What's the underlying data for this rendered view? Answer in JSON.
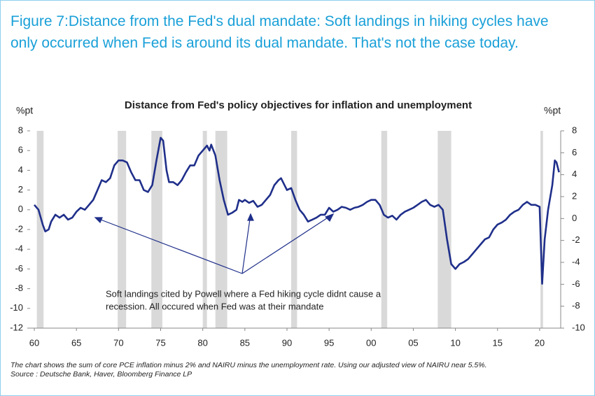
{
  "header": {
    "title": "Figure 7:Distance from the Fed's dual mandate: Soft landings in hiking cycles have only occurred when Fed is around its dual mandate. That's not the case today."
  },
  "chart_data": {
    "type": "line",
    "title": "Distance from Fed's policy objectives for inflation and unemployment",
    "ylabel": "%pt",
    "y2label": "%pt",
    "annotation": [
      "Soft landings cited by Powell where a Fed hiking cycle didnt cause a",
      "recession. All occured when Fed was at their mandate"
    ],
    "color": "#1f2f8a",
    "recession_color": "#d9d9d9",
    "xlim": [
      1959.5,
      2022.5
    ],
    "xticks": [
      {
        "value": 1960,
        "label": "60"
      },
      {
        "value": 1965,
        "label": "65"
      },
      {
        "value": 1970,
        "label": "70"
      },
      {
        "value": 1975,
        "label": "75"
      },
      {
        "value": 1980,
        "label": "80"
      },
      {
        "value": 1985,
        "label": "85"
      },
      {
        "value": 1990,
        "label": "90"
      },
      {
        "value": 1995,
        "label": "95"
      },
      {
        "value": 2000,
        "label": "00"
      },
      {
        "value": 2005,
        "label": "05"
      },
      {
        "value": 2010,
        "label": "10"
      },
      {
        "value": 2015,
        "label": "15"
      },
      {
        "value": 2020,
        "label": "20"
      }
    ],
    "ylim": [
      -12,
      8
    ],
    "yticks": [
      -12,
      -10,
      -8,
      -6,
      -4,
      -2,
      0,
      2,
      4,
      6,
      8
    ],
    "y2lim": [
      -10,
      8
    ],
    "y2ticks": [
      -10,
      -8,
      -6,
      -4,
      -2,
      0,
      2,
      4,
      6,
      8
    ],
    "recessions": [
      [
        1960.3,
        1961.1
      ],
      [
        1969.9,
        1970.9
      ],
      [
        1973.9,
        1975.2
      ],
      [
        1980.0,
        1980.5
      ],
      [
        1981.5,
        1982.9
      ],
      [
        1990.5,
        1991.2
      ],
      [
        2001.2,
        2001.9
      ],
      [
        2007.9,
        2009.5
      ],
      [
        2020.1,
        2020.4
      ]
    ],
    "x": [
      1960,
      1960.5,
      1961,
      1961.3,
      1961.7,
      1962,
      1962.5,
      1963,
      1963.5,
      1964,
      1964.5,
      1965,
      1965.5,
      1966,
      1966.5,
      1967,
      1967.5,
      1968,
      1968.5,
      1969,
      1969.5,
      1970,
      1970.5,
      1971,
      1971.5,
      1972,
      1972.5,
      1973,
      1973.5,
      1974,
      1974.5,
      1975,
      1975.3,
      1975.7,
      1976,
      1976.5,
      1977,
      1977.5,
      1978,
      1978.5,
      1979,
      1979.5,
      1980,
      1980.5,
      1980.8,
      1981,
      1981.5,
      1982,
      1982.5,
      1983,
      1983.5,
      1984,
      1984.3,
      1984.7,
      1985,
      1985.5,
      1986,
      1986.5,
      1987,
      1987.5,
      1988,
      1988.5,
      1989,
      1989.3,
      1989.7,
      1990,
      1990.5,
      1991,
      1991.5,
      1992,
      1992.5,
      1993,
      1993.5,
      1994,
      1994.5,
      1995,
      1995.5,
      1996,
      1996.5,
      1997,
      1997.5,
      1998,
      1998.5,
      1999,
      1999.5,
      2000,
      2000.5,
      2001,
      2001.5,
      2002,
      2002.5,
      2003,
      2003.5,
      2004,
      2004.5,
      2005,
      2005.5,
      2006,
      2006.5,
      2007,
      2007.5,
      2008,
      2008.5,
      2009,
      2009.5,
      2010,
      2010.5,
      2011,
      2011.5,
      2012,
      2012.5,
      2013,
      2013.5,
      2014,
      2014.5,
      2015,
      2015.5,
      2016,
      2016.5,
      2017,
      2017.5,
      2018,
      2018.5,
      2019,
      2019.5,
      2020,
      2020.3,
      2020.6,
      2021,
      2021.5,
      2021.8,
      2022,
      2022.3
    ],
    "values": [
      0.5,
      0,
      -1.5,
      -2.2,
      -2.0,
      -1.2,
      -0.5,
      -0.8,
      -0.5,
      -1.0,
      -0.8,
      -0.2,
      0.2,
      0.0,
      0.5,
      1.0,
      2.0,
      3.0,
      2.8,
      3.2,
      4.5,
      5.0,
      5.0,
      4.8,
      3.8,
      3.0,
      3.0,
      2.0,
      1.8,
      2.5,
      5.0,
      7.3,
      7.0,
      4.0,
      2.8,
      2.8,
      2.5,
      3.0,
      3.8,
      4.5,
      4.5,
      5.5,
      6.0,
      6.5,
      6.0,
      6.6,
      5.5,
      3.0,
      1.0,
      -0.5,
      -0.3,
      0.0,
      1.0,
      0.8,
      1.0,
      0.7,
      0.9,
      0.3,
      0.5,
      1.0,
      1.5,
      2.5,
      3.0,
      3.2,
      2.5,
      2.0,
      2.2,
      1.0,
      0.0,
      -0.5,
      -1.2,
      -1.0,
      -0.8,
      -0.5,
      -0.5,
      0.2,
      -0.2,
      0.0,
      0.3,
      0.2,
      0.0,
      0.2,
      0.3,
      0.5,
      0.8,
      1.0,
      1.0,
      0.5,
      -0.5,
      -0.8,
      -0.6,
      -1.0,
      -0.5,
      -0.2,
      0.0,
      0.2,
      0.5,
      0.8,
      1.0,
      0.5,
      0.3,
      0.5,
      0.0,
      -3.0,
      -5.5,
      -6.0,
      -5.5,
      -5.3,
      -5.0,
      -4.5,
      -4.0,
      -3.5,
      -3.0,
      -2.8,
      -2.0,
      -1.5,
      -1.3,
      -1.0,
      -0.5,
      -0.2,
      0.0,
      0.5,
      0.8,
      0.5,
      0.5,
      0.3,
      -7.5,
      -3.0,
      0.0,
      2.5,
      5.0,
      4.8,
      3.8
    ]
  },
  "footer": {
    "note": "The chart shows the sum of core PCE inflation minus 2% and NAIRU minus the unemployment rate. Using our adjusted view of NAIRU near 5.5%.",
    "source": "Source : Deutsche Bank, Haver, Bloomberg Finance LP"
  }
}
